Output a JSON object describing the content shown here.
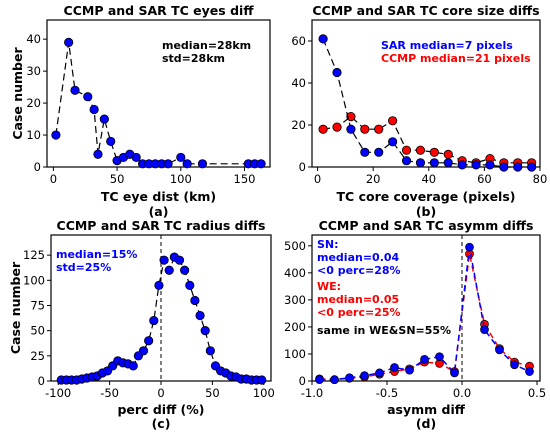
{
  "chart_data": [
    {
      "type": "line",
      "panel_label": "(a)",
      "title": "CCMP and SAR TC eyes diff",
      "xlabel": "TC eye dist (km)",
      "ylabel": "Case number",
      "xlim": [
        -5,
        170
      ],
      "ylim": [
        0,
        46
      ],
      "xticks": [
        0,
        50,
        100,
        150
      ],
      "yticks": [
        0,
        10,
        20,
        30,
        40
      ],
      "annotations": [
        {
          "text": "median=28km",
          "color": "#000000"
        },
        {
          "text": "std=28km",
          "color": "#000000"
        }
      ],
      "series": [
        {
          "color": "#0000ff",
          "dashed": false,
          "x": [
            2,
            12,
            17,
            27,
            32,
            35,
            40,
            45,
            50,
            55,
            60,
            65,
            70,
            75,
            80,
            85,
            90,
            100,
            105,
            117,
            153,
            158,
            163
          ],
          "y": [
            10,
            39,
            24,
            22,
            18,
            4,
            15,
            8,
            2,
            3,
            4,
            3,
            1,
            1,
            1,
            1,
            1,
            3,
            1,
            1,
            1,
            1,
            1
          ]
        }
      ]
    },
    {
      "type": "line",
      "panel_label": "(b)",
      "title": "CCMP and SAR TC core size diffs",
      "xlabel": "TC core coverage (pixels)",
      "ylabel": "",
      "xlim": [
        -2,
        80
      ],
      "ylim": [
        0,
        70
      ],
      "xticks": [
        0,
        20,
        40,
        60,
        80
      ],
      "yticks": [
        0,
        20,
        40,
        60
      ],
      "annotations": [
        {
          "text": "SAR median=7 pixels",
          "color": "#0000ff"
        },
        {
          "text": "CCMP median=21 pixels",
          "color": "#ff0000"
        }
      ],
      "series": [
        {
          "color": "#ff0000",
          "dashed": false,
          "x": [
            2,
            7,
            12,
            17,
            22,
            27,
            32,
            37,
            42,
            47,
            52,
            57,
            62,
            67,
            72,
            77
          ],
          "y": [
            18,
            19,
            24,
            18,
            18,
            22,
            8,
            8,
            7,
            6,
            3,
            2,
            4,
            2,
            2,
            2
          ]
        },
        {
          "color": "#0000ff",
          "dashed": false,
          "x": [
            2,
            7,
            12,
            17,
            22,
            27,
            32,
            37,
            42,
            47,
            52,
            57,
            62,
            67,
            72,
            77
          ],
          "y": [
            61,
            45,
            18,
            7,
            7,
            12,
            3,
            2,
            2,
            2,
            1,
            1,
            1,
            0,
            0,
            0
          ]
        }
      ]
    },
    {
      "type": "line",
      "panel_label": "(c)",
      "title": "CCMP and SAR TC radius diffs",
      "xlabel": "perc diff (%)",
      "ylabel": "Case number",
      "xlim": [
        -107,
        107
      ],
      "ylim": [
        0,
        145
      ],
      "xticks": [
        -100,
        -50,
        0,
        50,
        100
      ],
      "yticks": [
        0,
        25,
        50,
        75,
        100,
        125
      ],
      "annotations": [
        {
          "text": "median=15%",
          "color": "#0000ff"
        },
        {
          "text": "std=25%",
          "color": "#0000ff"
        }
      ],
      "series": [
        {
          "color": "#0000ff",
          "dashed": false,
          "x": [
            -97,
            -92,
            -87,
            -82,
            -77,
            -72,
            -67,
            -62,
            -57,
            -52,
            -47,
            -42,
            -37,
            -32,
            -27,
            -22,
            -17,
            -12,
            -7,
            -2,
            3,
            8,
            13,
            18,
            23,
            28,
            33,
            38,
            43,
            48,
            53,
            58,
            63,
            68,
            73,
            78,
            83,
            88,
            93,
            98
          ],
          "y": [
            1,
            1,
            1,
            1,
            2,
            3,
            4,
            5,
            8,
            10,
            15,
            20,
            18,
            17,
            15,
            25,
            30,
            40,
            60,
            95,
            120,
            110,
            123,
            120,
            110,
            95,
            80,
            65,
            50,
            30,
            15,
            10,
            8,
            5,
            4,
            2,
            2,
            1,
            1,
            1
          ]
        }
      ]
    },
    {
      "type": "line",
      "panel_label": "(d)",
      "title": "CCMP and SAR TC asymm diffs",
      "xlabel": "asymm diff",
      "ylabel": "",
      "xlim": [
        -1.0,
        0.52
      ],
      "ylim": [
        0,
        540
      ],
      "xticks": [
        -1.0,
        -0.5,
        0.0,
        0.5
      ],
      "xtick_labels": [
        "-1.0",
        "-0.5",
        "0.0",
        "0.5"
      ],
      "yticks": [
        0,
        100,
        200,
        300,
        400,
        500
      ],
      "annotations": [
        {
          "text": "SN:",
          "color": "#0000ff"
        },
        {
          "text": "median=0.04",
          "color": "#0000ff"
        },
        {
          "text": "<0 perc=28%",
          "color": "#0000ff"
        },
        {
          "text": "WE:",
          "color": "#ff0000"
        },
        {
          "text": "median=0.05",
          "color": "#ff0000"
        },
        {
          "text": "<0 perc=25%",
          "color": "#ff0000"
        },
        {
          "text": "same in WE&SN=55%",
          "color": "#000000"
        }
      ],
      "series": [
        {
          "color": "#ff0000",
          "dashed": true,
          "x": [
            -0.95,
            -0.85,
            -0.75,
            -0.65,
            -0.55,
            -0.45,
            -0.35,
            -0.25,
            -0.15,
            -0.05,
            0.05,
            0.15,
            0.25,
            0.35,
            0.45
          ],
          "y": [
            8,
            5,
            10,
            15,
            25,
            35,
            45,
            70,
            65,
            35,
            470,
            210,
            120,
            70,
            55
          ]
        },
        {
          "color": "#0000ff",
          "dashed": true,
          "x": [
            -0.95,
            -0.85,
            -0.75,
            -0.65,
            -0.55,
            -0.45,
            -0.35,
            -0.25,
            -0.15,
            -0.05,
            0.05,
            0.15,
            0.25,
            0.35,
            0.45
          ],
          "y": [
            5,
            5,
            12,
            20,
            30,
            50,
            40,
            80,
            90,
            30,
            495,
            190,
            115,
            60,
            35
          ]
        }
      ]
    }
  ]
}
